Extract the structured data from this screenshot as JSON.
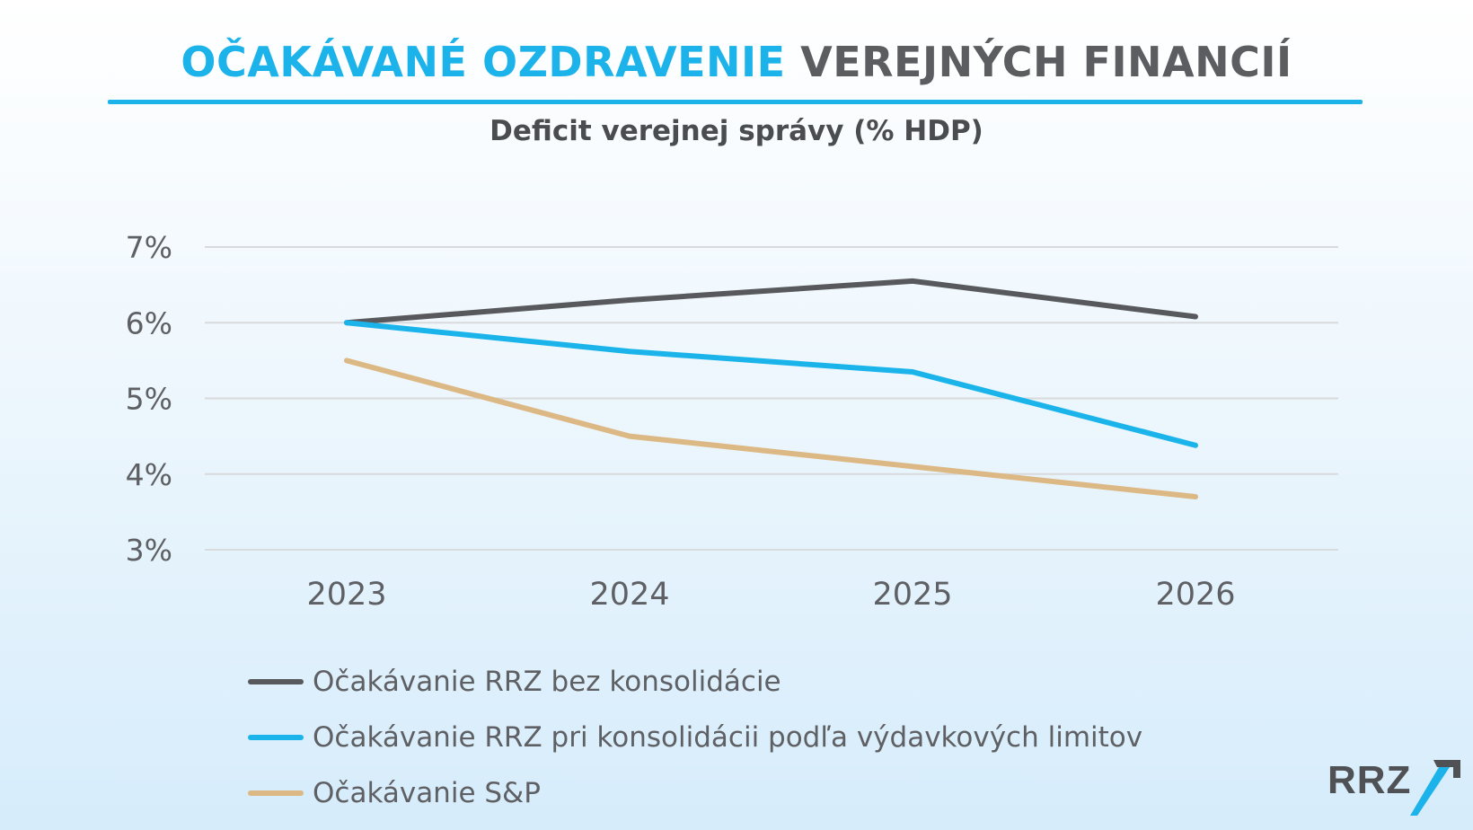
{
  "header": {
    "title_part1": "OČAKÁVANÉ OZDRAVENIE",
    "title_part2": "VEREJNÝCH FINANCIÍ"
  },
  "colors": {
    "accent": "#1cb3ea",
    "dark": "#5b5d61",
    "sp": "#deb887",
    "grid": "#d9dadc"
  },
  "chart_data": {
    "type": "line",
    "title": "Deficit verejnej správy (% HDP)",
    "x": [
      "2023",
      "2024",
      "2025",
      "2026"
    ],
    "ylim": [
      3,
      7
    ],
    "yticks": [
      7,
      6,
      5,
      4,
      3
    ],
    "ytick_labels": [
      "7%",
      "6%",
      "5%",
      "4%",
      "3%"
    ],
    "grid": true,
    "legend_position": "bottom",
    "series": [
      {
        "name": "Očakávanie RRZ bez konsolidácie",
        "color": "#58595d",
        "values": [
          6.0,
          6.3,
          6.55,
          6.08
        ]
      },
      {
        "name": "Očakávanie RRZ pri konsolidácii podľa výdavkových limitov",
        "color": "#1ab4ea",
        "values": [
          6.0,
          5.62,
          5.35,
          4.38
        ]
      },
      {
        "name": "Očakávanie S&P",
        "color": "#dcb884",
        "values": [
          5.5,
          4.5,
          4.1,
          3.7
        ]
      }
    ]
  },
  "logo": {
    "text": "RRZ",
    "icon": "rrz-slash-icon"
  }
}
